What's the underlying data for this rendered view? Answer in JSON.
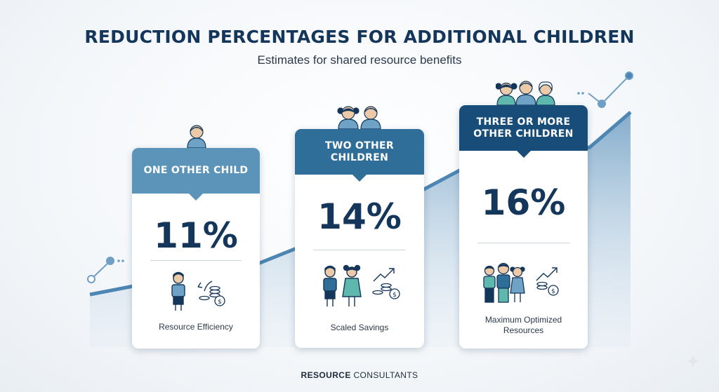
{
  "chart_data": {
    "type": "bar",
    "title": "REDUCTION PERCENTAGES FOR ADDITIONAL CHILDREN",
    "subtitle": "Estimates for shared resource benefits",
    "unit": "%",
    "categories": [
      "ONE OTHER CHILD",
      "TWO OTHER CHILDREN",
      "THREE OR MORE OTHER CHILDREN"
    ],
    "values": [
      11,
      14,
      16
    ],
    "value_labels": [
      "11%",
      "14%",
      "16%"
    ],
    "captions": [
      "Resource Efficiency",
      "Scaled Savings",
      "Maximum Optimized Resources"
    ],
    "header_colors": [
      "#5b94b8",
      "#2f6e98",
      "#174d78"
    ],
    "icons": [
      "one-child-icon",
      "two-children-icon",
      "three-children-icon"
    ]
  },
  "footer": {
    "brand_bold": "RESOURCE",
    "brand_rest": "CONSULTANTS"
  }
}
